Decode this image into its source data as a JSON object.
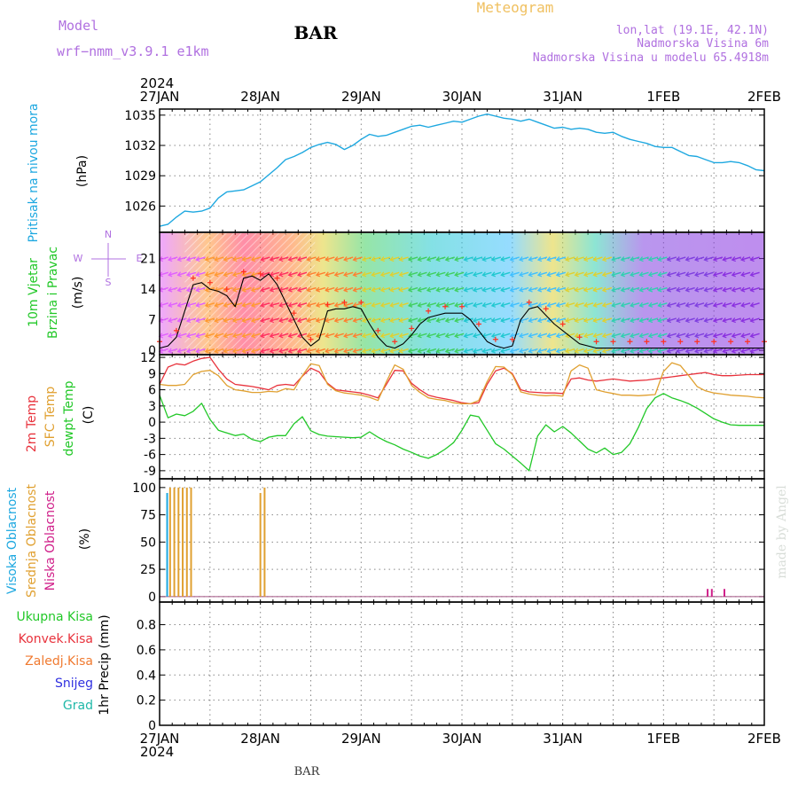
{
  "header": {
    "model_label": "Model",
    "model_name": "wrf−nmm_v3.9.1  e1km",
    "station": "BAR",
    "meteogram": "Meteogram",
    "lonlat": "lon,lat (19.1E, 42.1N)",
    "elevation": "Nadmorska Visina 6m",
    "model_elevation": "Nadmorska Visina u modelu 65.4918m",
    "bottom_label": "BAR",
    "credit": "made by Angel",
    "year_top": "2024",
    "year_bottom": "2024"
  },
  "colors": {
    "pressure": "#1ea8e0",
    "temp2m": "#e8323c",
    "sfc": "#e0a030",
    "dewpt": "#22c828",
    "wind_speed": "#000000",
    "gust_marks": "#ff3020",
    "high_cloud": "#1ea8e0",
    "mid_cloud": "#e0a030",
    "low_cloud": "#d0208a",
    "grid": "#888888",
    "model_text": "#b070e0",
    "meteogram_text": "#f0c060"
  },
  "x_axis": {
    "ticks": [
      "27JAN",
      "28JAN",
      "29JAN",
      "30JAN",
      "31JAN",
      "1FEB",
      "2FEB"
    ],
    "range_hours": [
      0,
      144
    ]
  },
  "chart_data": [
    {
      "type": "line",
      "panel": "pressure",
      "ylabel_lines": [
        "Pritisak na nivou mora"
      ],
      "unit": "(hPa)",
      "yticks": [
        1026,
        1029,
        1032,
        1035
      ],
      "ylim": [
        1023.4,
        1035.6
      ],
      "x_hours": [
        0,
        2,
        4,
        6,
        8,
        10,
        12,
        14,
        16,
        18,
        20,
        22,
        24,
        26,
        28,
        30,
        32,
        34,
        36,
        38,
        40,
        42,
        44,
        46,
        48,
        50,
        52,
        54,
        56,
        58,
        60,
        62,
        64,
        66,
        68,
        70,
        72,
        74,
        76,
        78,
        80,
        82,
        84,
        86,
        88,
        90,
        92,
        94,
        96,
        98,
        100,
        102,
        104,
        106,
        108,
        110,
        112,
        114,
        116,
        118,
        120,
        122,
        124,
        126,
        128,
        130,
        132,
        134,
        136,
        138,
        140,
        142,
        144
      ],
      "values": [
        1024.0,
        1024.2,
        1024.9,
        1025.5,
        1025.4,
        1025.5,
        1025.8,
        1026.8,
        1027.4,
        1027.5,
        1027.6,
        1028.0,
        1028.4,
        1029.1,
        1029.8,
        1030.6,
        1030.9,
        1031.3,
        1031.8,
        1032.1,
        1032.3,
        1032.1,
        1031.6,
        1032.0,
        1032.6,
        1033.1,
        1032.9,
        1033.0,
        1033.3,
        1033.6,
        1033.9,
        1034.0,
        1033.8,
        1034.0,
        1034.2,
        1034.4,
        1034.3,
        1034.6,
        1034.9,
        1035.1,
        1034.9,
        1034.7,
        1034.6,
        1034.4,
        1034.6,
        1034.3,
        1034.0,
        1033.7,
        1033.8,
        1033.6,
        1033.7,
        1033.6,
        1033.3,
        1033.2,
        1033.3,
        1032.9,
        1032.6,
        1032.4,
        1032.2,
        1031.9,
        1031.8,
        1031.8,
        1031.4,
        1031.0,
        1030.9,
        1030.6,
        1030.3,
        1030.3,
        1030.4,
        1030.3,
        1030.0,
        1029.6,
        1029.5
      ]
    },
    {
      "type": "line",
      "panel": "wind",
      "ylabel_lines": [
        "10m Vjetar",
        "Brzina i Pravac"
      ],
      "unit": "(m/s)",
      "compass": [
        "N",
        "E",
        "S",
        "W"
      ],
      "yticks": [
        0,
        7,
        14,
        21
      ],
      "ylim": [
        -1,
        27
      ],
      "x_hours": [
        0,
        2,
        4,
        6,
        8,
        10,
        12,
        14,
        16,
        18,
        20,
        22,
        24,
        26,
        28,
        30,
        32,
        34,
        36,
        38,
        40,
        42,
        44,
        46,
        48,
        50,
        52,
        54,
        56,
        58,
        60,
        62,
        64,
        66,
        68,
        70,
        72,
        74,
        76,
        78,
        80,
        82,
        84,
        86,
        88,
        90,
        92,
        94,
        96,
        98,
        100,
        102,
        104,
        106,
        108,
        110,
        112,
        114,
        116,
        118,
        120,
        122,
        124,
        126,
        128,
        130,
        132,
        134,
        136,
        138,
        140,
        142,
        144
      ],
      "values": [
        0.5,
        1.0,
        3.0,
        9.0,
        15.0,
        15.5,
        14.0,
        13.5,
        12.5,
        10.0,
        16.5,
        17.0,
        16.0,
        17.5,
        15.0,
        11.0,
        7.0,
        3.0,
        1.0,
        2.5,
        9.0,
        9.5,
        9.5,
        10.0,
        9.5,
        6.0,
        3.0,
        1.0,
        0.5,
        1.5,
        3.5,
        6.0,
        7.5,
        8.0,
        8.5,
        8.5,
        8.5,
        7.0,
        4.5,
        2.0,
        1.0,
        0.5,
        1.0,
        7.0,
        9.5,
        10.0,
        8.0,
        6.0,
        4.5,
        3.0,
        1.5,
        1.0,
        0.5,
        0.5,
        0.5,
        0.5,
        0.5,
        0.5,
        0.5,
        0.5,
        0.5,
        0.5,
        0.5,
        0.5,
        0.5,
        0.5,
        0.5,
        0.5,
        0.5,
        0.5,
        0.5,
        0.5,
        0.5
      ]
    },
    {
      "type": "line",
      "panel": "temperature",
      "ylabel_lines": [
        "2m Temp",
        "SFC Temp",
        "dewpt Temp"
      ],
      "unit": "(C)",
      "yticks": [
        -9,
        -6,
        -3,
        0,
        3,
        6,
        9,
        12
      ],
      "ylim": [
        -10.5,
        12.5
      ],
      "x_hours": [
        0,
        2,
        4,
        6,
        8,
        10,
        12,
        14,
        16,
        18,
        20,
        22,
        24,
        26,
        28,
        30,
        32,
        34,
        36,
        38,
        40,
        42,
        44,
        46,
        48,
        50,
        52,
        54,
        56,
        58,
        60,
        62,
        64,
        66,
        68,
        70,
        72,
        74,
        76,
        78,
        80,
        82,
        84,
        86,
        88,
        90,
        92,
        94,
        96,
        98,
        100,
        102,
        104,
        106,
        108,
        110,
        112,
        114,
        116,
        118,
        120,
        122,
        124,
        126,
        128,
        130,
        132,
        134,
        136,
        138,
        140,
        142,
        144
      ],
      "series": [
        {
          "name": "2m Temp",
          "values": [
            7.0,
            10.2,
            10.8,
            10.6,
            11.3,
            11.8,
            12.0,
            9.8,
            8.0,
            7.0,
            6.8,
            6.6,
            6.3,
            6.0,
            6.8,
            7.0,
            6.8,
            8.5,
            10.0,
            9.3,
            7.2,
            6.0,
            5.8,
            5.6,
            5.4,
            5.0,
            4.5,
            7.0,
            9.6,
            9.5,
            7.2,
            6.0,
            5.0,
            4.6,
            4.3,
            4.0,
            3.6,
            3.4,
            3.6,
            7.0,
            9.5,
            10.0,
            9.0,
            6.0,
            5.6,
            5.5,
            5.4,
            5.4,
            5.3,
            8.0,
            8.2,
            7.8,
            7.6,
            7.8,
            8.0,
            7.8,
            7.6,
            7.7,
            7.8,
            8.0,
            8.2,
            8.4,
            8.6,
            8.8,
            9.0,
            9.2,
            8.8,
            8.6,
            8.6,
            8.7,
            8.8,
            8.8,
            8.8
          ]
        },
        {
          "name": "SFC Temp",
          "values": [
            7.0,
            6.8,
            6.8,
            7.0,
            8.8,
            9.4,
            9.6,
            8.6,
            6.8,
            6.0,
            5.8,
            5.5,
            5.5,
            5.7,
            5.6,
            6.2,
            6.0,
            8.6,
            10.8,
            10.5,
            7.0,
            5.8,
            5.4,
            5.2,
            5.0,
            4.6,
            4.0,
            7.5,
            10.6,
            9.8,
            6.8,
            5.5,
            4.5,
            4.2,
            4.0,
            3.6,
            3.4,
            3.4,
            4.0,
            7.5,
            10.3,
            10.2,
            8.8,
            5.6,
            5.2,
            5.0,
            4.9,
            5.0,
            4.8,
            9.5,
            10.6,
            10.0,
            6.0,
            5.6,
            5.3,
            5.0,
            5.0,
            4.9,
            5.0,
            5.1,
            9.4,
            11.0,
            10.5,
            8.6,
            6.6,
            5.8,
            5.4,
            5.2,
            5.0,
            4.9,
            4.8,
            4.6,
            4.5
          ]
        },
        {
          "name": "dewpt Temp",
          "values": [
            5.0,
            0.8,
            1.5,
            1.2,
            2.0,
            3.5,
            0.5,
            -1.5,
            -2.0,
            -2.5,
            -2.2,
            -3.2,
            -3.6,
            -2.8,
            -2.5,
            -2.5,
            -0.3,
            1.0,
            -1.6,
            -2.3,
            -2.6,
            -2.7,
            -2.8,
            -2.9,
            -2.8,
            -1.8,
            -2.8,
            -3.6,
            -4.2,
            -5.0,
            -5.6,
            -6.3,
            -6.7,
            -6.0,
            -5.0,
            -3.8,
            -1.5,
            1.3,
            1.0,
            -1.5,
            -4.0,
            -5.0,
            -6.3,
            -7.6,
            -9.0,
            -2.6,
            -0.5,
            -1.8,
            -0.8,
            -2.0,
            -3.5,
            -5.0,
            -5.7,
            -4.8,
            -6.0,
            -5.6,
            -4.0,
            -1.0,
            2.5,
            4.5,
            5.3,
            4.5,
            4.0,
            3.4,
            2.6,
            1.6,
            0.6,
            0.0,
            -0.5,
            -0.6,
            -0.6,
            -0.6,
            -0.6
          ]
        }
      ]
    },
    {
      "type": "bar",
      "panel": "cloud",
      "ylabel_lines": [
        "Visoka Oblacnost",
        "Srednja Oblacnost",
        "Niska Oblacnost"
      ],
      "unit": "(%)",
      "yticks": [
        0,
        25,
        50,
        75,
        100
      ],
      "ylim": [
        -5,
        108
      ],
      "series": [
        {
          "name": "Visoka Oblacnost",
          "x_hours": [
            1.8
          ],
          "values": [
            95
          ]
        },
        {
          "name": "Srednja Oblacnost",
          "x_hours": [
            2.5,
            3.5,
            4.5,
            5.5,
            6.5,
            7.5,
            24.0,
            25.0
          ],
          "values": [
            100,
            100,
            100,
            100,
            100,
            100,
            95,
            100
          ]
        },
        {
          "name": "Niska Oblacnost",
          "x_hours": [
            130.5,
            131.5,
            134.5
          ],
          "values": [
            7,
            7,
            7
          ]
        }
      ]
    },
    {
      "type": "bar",
      "panel": "precip",
      "ylabel_lines": [
        "Ukupna Kisa",
        "Konvek.Kisa",
        "Zaledj.Kisa",
        "Snijeg",
        "Grad"
      ],
      "unit": "1hr Precip (mm)",
      "yticks": [
        0,
        0.2,
        0.4,
        0.6,
        0.8
      ],
      "ylim": [
        0,
        0.98
      ],
      "series": [
        {
          "name": "Ukupna Kisa",
          "values": []
        },
        {
          "name": "Konvek.Kisa",
          "values": []
        },
        {
          "name": "Zaledj.Kisa",
          "values": []
        },
        {
          "name": "Snijeg",
          "values": []
        },
        {
          "name": "Grad",
          "values": []
        }
      ]
    }
  ]
}
